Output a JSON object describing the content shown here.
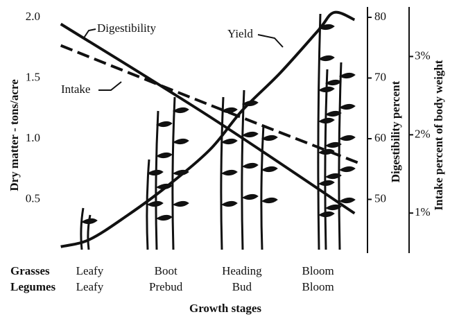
{
  "chart_data": {
    "type": "line",
    "y_label": "Dry matter - tons/acre",
    "y2_label": "Digestibility percent",
    "y3_label": "Intake percent of body weight",
    "x_label": "Growth stages",
    "xlim": [
      -0.45,
      3.65
    ],
    "xticks": [
      0,
      1,
      2,
      3
    ],
    "x_rows": [
      {
        "name": "Grasses",
        "labels": [
          "Leafy",
          "Boot",
          "Heading",
          "Bloom"
        ]
      },
      {
        "name": "Legumes",
        "labels": [
          "Leafy",
          "Prebud",
          "Bud",
          "Bloom"
        ]
      }
    ],
    "ylim": [
      0,
      2
    ],
    "yticks": [
      {
        "value": 0.5,
        "label": "0.5"
      },
      {
        "value": 1,
        "label": "1.0"
      },
      {
        "value": 1.5,
        "label": "1.5"
      },
      {
        "value": 2,
        "label": "2.0"
      }
    ],
    "y2lim": [
      40,
      80
    ],
    "y2ticks": [
      50,
      60,
      70,
      80
    ],
    "y3lim": [
      0.4,
      3.5
    ],
    "y3ticks": [
      {
        "value": 1,
        "label": "1%"
      },
      {
        "value": 2,
        "label": "2%"
      },
      {
        "value": 3,
        "label": "3%"
      }
    ],
    "series": [
      {
        "name": "Yield",
        "color": "#111111",
        "axis": "y",
        "dashed": false,
        "x": [
          -0.38,
          0,
          0.5,
          1,
          1.58,
          2,
          2.5,
          3,
          3.21,
          3.48
        ],
        "values": [
          0.11,
          0.17,
          0.37,
          0.6,
          0.91,
          1.23,
          1.54,
          1.89,
          2.04,
          1.98
        ]
      },
      {
        "name": "Digestibility",
        "color": "#111111",
        "axis": "y2",
        "dashed": false,
        "x": [
          -0.38,
          1.58,
          3.48
        ],
        "values": [
          78.9,
          63.6,
          47.7
        ]
      },
      {
        "name": "Intake",
        "color": "#111111",
        "axis": "y3",
        "dashed": true,
        "x": [
          -0.38,
          1.58,
          3.56
        ],
        "values": [
          3.14,
          2.38,
          1.63
        ]
      }
    ]
  }
}
